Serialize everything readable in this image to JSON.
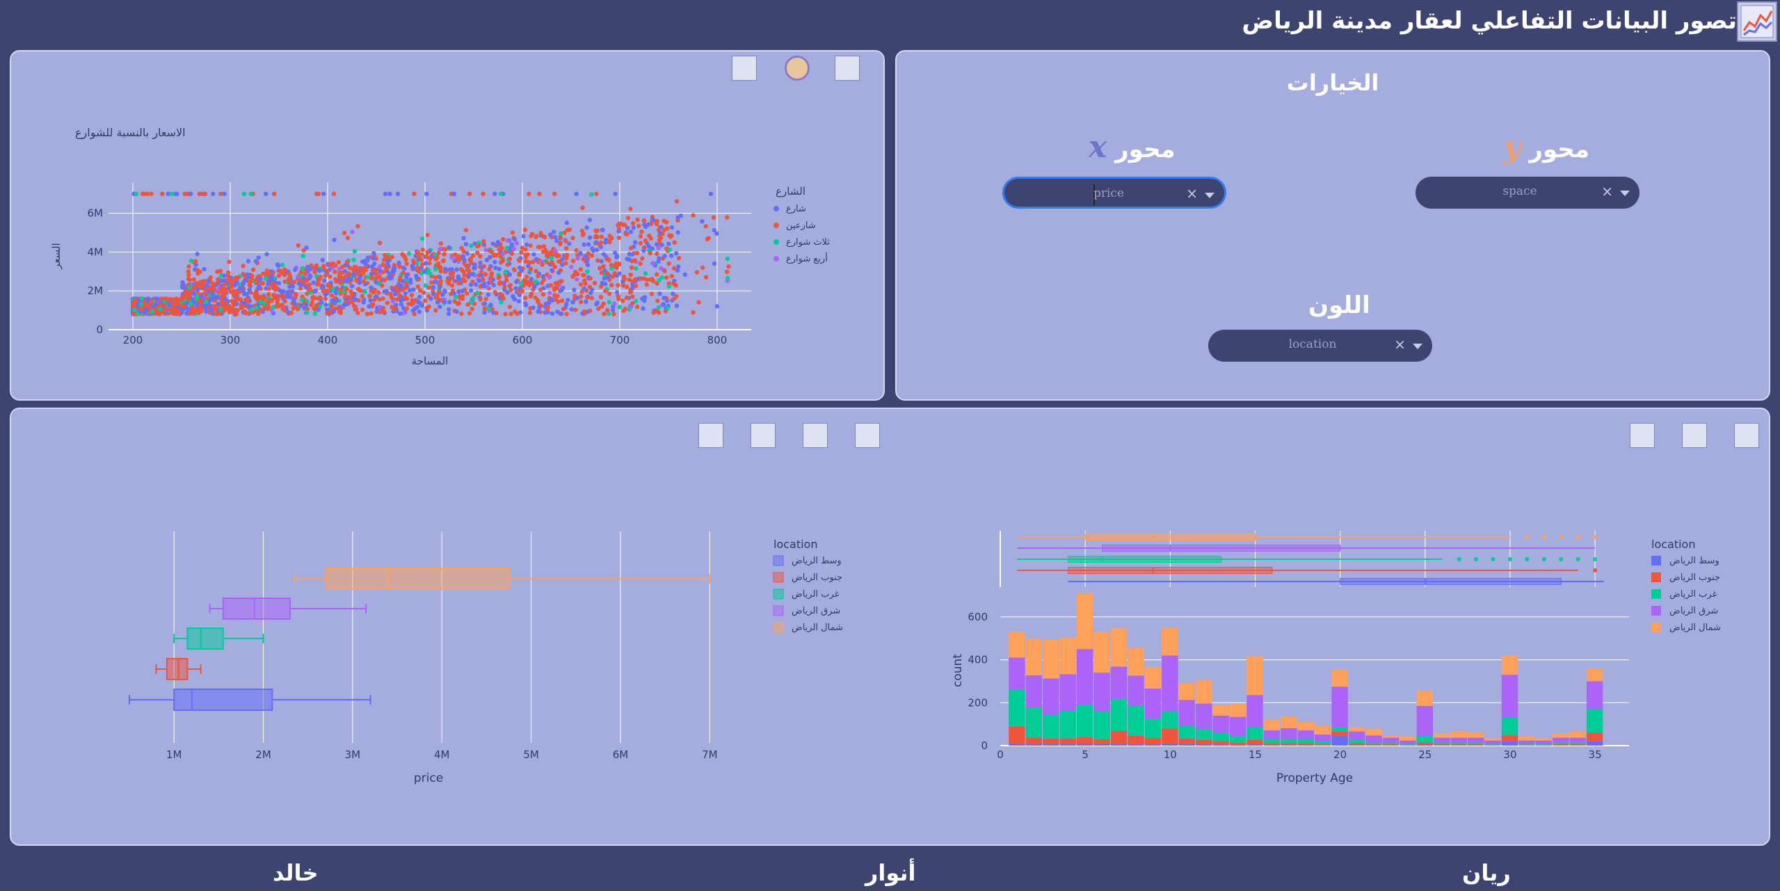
{
  "header": {
    "title": "تصور البيانات التفاعلي لعقار مدينة الرياض",
    "logo_icon": "line-chart-icon"
  },
  "options": {
    "title": "الخيارات",
    "x_axis": {
      "label": "محور",
      "symbol": "x",
      "value": "price"
    },
    "y_axis": {
      "label": "محور",
      "symbol": "y",
      "value": "space"
    },
    "color": {
      "label": "اللون",
      "value": "location"
    },
    "clear_glyph": "×"
  },
  "footer": {
    "names": [
      "خالد",
      "أنوار",
      "ريان"
    ]
  },
  "colors": {
    "blue": "#636efa",
    "red": "#ef553b",
    "green": "#00cc96",
    "purple": "#ab63fa",
    "orange": "#ffa15a"
  },
  "scatter": {
    "chart_data": {
      "type": "scatter",
      "title": "الاسعار بالنسبة للشوارع",
      "xlabel": "المساحة",
      "ylabel": "السعر",
      "xlim": [
        175,
        835
      ],
      "ylim": [
        0,
        7.6
      ],
      "xticks": [
        "200",
        "300",
        "400",
        "500",
        "600",
        "700",
        "800"
      ],
      "yticks": [
        "0",
        "2M",
        "4M",
        "6M"
      ],
      "legend_title": "الشارع",
      "series": [
        {
          "name": "شارع",
          "color": "#636efa"
        },
        {
          "name": "شارعين",
          "color": "#ef553b"
        },
        {
          "name": "ثلاث شوارع",
          "color": "#00cc96"
        },
        {
          "name": "أربع شوارع",
          "color": "#ab63fa"
        }
      ]
    }
  },
  "boxplot": {
    "chart_data": {
      "type": "box",
      "xlabel": "price",
      "xlim": [
        0.5,
        7.2
      ],
      "xticks": [
        "1M",
        "2M",
        "3M",
        "4M",
        "5M",
        "6M",
        "7M"
      ],
      "legend_title": "location",
      "series": [
        {
          "name": "وسط الرياض",
          "color": "#636efa",
          "min": 0.5,
          "q1": 1.0,
          "median": 1.2,
          "q3": 2.1,
          "max": 3.2
        },
        {
          "name": "جنوب الرياض",
          "color": "#ef553b",
          "min": 0.8,
          "q1": 0.92,
          "median": 1.05,
          "q3": 1.15,
          "max": 1.3
        },
        {
          "name": "غرب الرياض",
          "color": "#00cc96",
          "min": 1.0,
          "q1": 1.15,
          "median": 1.3,
          "q3": 1.55,
          "max": 2.0
        },
        {
          "name": "شرق الرياض",
          "color": "#ab63fa",
          "min": 1.4,
          "q1": 1.55,
          "median": 1.9,
          "q3": 2.3,
          "max": 3.15
        },
        {
          "name": "شمال الرياض",
          "color": "#ffa15a",
          "min": 2.35,
          "q1": 2.7,
          "median": 3.4,
          "q3": 4.75,
          "max": 7.0
        }
      ]
    }
  },
  "histogram": {
    "chart_data": {
      "type": "bar",
      "stacked": true,
      "xlabel": "Property Age",
      "ylabel": "count",
      "xlim": [
        0,
        37
      ],
      "ylim": [
        0,
        700
      ],
      "xticks": [
        "0",
        "5",
        "10",
        "15",
        "20",
        "25",
        "30",
        "35"
      ],
      "yticks": [
        "0",
        "200",
        "400",
        "600"
      ],
      "legend_title": "location",
      "x": [
        1,
        2,
        3,
        4,
        5,
        6,
        7,
        8,
        9,
        10,
        11,
        12,
        13,
        14,
        15,
        16,
        17,
        18,
        19,
        20,
        21,
        22,
        23,
        24,
        25,
        26,
        27,
        28,
        29,
        30,
        31,
        32,
        33,
        34,
        35
      ],
      "series": [
        {
          "name": "وسط الرياض",
          "color": "#636efa",
          "values": [
            10,
            8,
            8,
            8,
            10,
            10,
            8,
            6,
            6,
            10,
            8,
            6,
            5,
            4,
            6,
            3,
            3,
            3,
            2,
            45,
            3,
            2,
            2,
            1,
            5,
            2,
            2,
            2,
            1,
            20,
            1,
            1,
            2,
            2,
            20
          ]
        },
        {
          "name": "جنوب الرياض",
          "color": "#ef553b",
          "values": [
            80,
            30,
            25,
            25,
            30,
            20,
            60,
            40,
            30,
            70,
            25,
            20,
            15,
            10,
            20,
            8,
            8,
            8,
            5,
            20,
            8,
            5,
            5,
            3,
            10,
            5,
            5,
            5,
            3,
            30,
            3,
            3,
            5,
            5,
            40
          ]
        },
        {
          "name": "غرب الرياض",
          "color": "#00cc96",
          "values": [
            170,
            140,
            110,
            130,
            150,
            130,
            150,
            140,
            90,
            80,
            60,
            50,
            40,
            30,
            60,
            20,
            20,
            20,
            15,
            20,
            15,
            10,
            10,
            5,
            30,
            10,
            10,
            10,
            5,
            80,
            5,
            5,
            10,
            10,
            110
          ]
        },
        {
          "name": "شرق الرياض",
          "color": "#ab63fa",
          "values": [
            150,
            150,
            170,
            170,
            260,
            180,
            150,
            140,
            140,
            260,
            120,
            120,
            80,
            90,
            150,
            40,
            50,
            40,
            30,
            190,
            40,
            30,
            20,
            15,
            140,
            20,
            20,
            20,
            15,
            200,
            15,
            15,
            20,
            20,
            130
          ]
        },
        {
          "name": "شمال الرياض",
          "color": "#ffa15a",
          "values": [
            120,
            170,
            180,
            170,
            260,
            190,
            180,
            130,
            100,
            130,
            80,
            110,
            50,
            60,
            180,
            50,
            55,
            40,
            40,
            80,
            20,
            30,
            10,
            20,
            70,
            20,
            30,
            25,
            10,
            90,
            20,
            10,
            20,
            30,
            60
          ]
        }
      ],
      "marginal_boxes": [
        {
          "name": "وسط الرياض",
          "color": "#636efa",
          "q1": 20,
          "median": 25,
          "q3": 33,
          "max": 35.5,
          "min": 4
        },
        {
          "name": "جنوب الرياض",
          "color": "#ef553b",
          "q1": 4,
          "median": 9,
          "q3": 16,
          "max": 34,
          "min": 1
        },
        {
          "name": "غرب الرياض",
          "color": "#00cc96",
          "q1": 4,
          "median": 6,
          "q3": 13,
          "max": 26,
          "min": 1
        },
        {
          "name": "شرق الرياض",
          "color": "#ab63fa",
          "q1": 6,
          "median": 10,
          "q3": 20,
          "max": 35,
          "min": 1
        },
        {
          "name": "شمال الرياض",
          "color": "#ffa15a",
          "q1": 5,
          "median": 9,
          "q3": 15,
          "max": 30,
          "min": 1
        }
      ]
    }
  }
}
